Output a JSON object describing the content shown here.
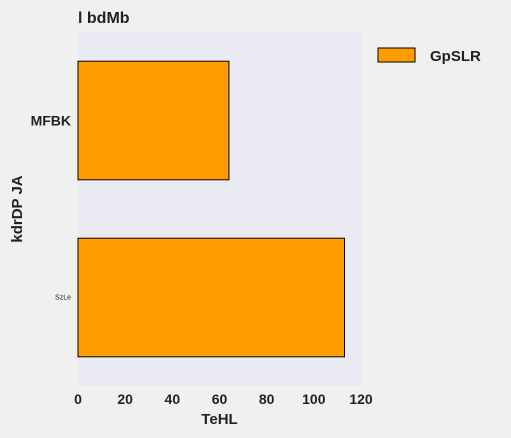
{
  "chart_data": {
    "type": "bar",
    "orientation": "horizontal",
    "title": "l bdMb",
    "xlabel": "TeHL",
    "ylabel": "kdrDP JA",
    "categories": [
      "MFBK",
      "SzLe"
    ],
    "series": [
      {
        "name": "GpSLR",
        "values": [
          64,
          113
        ],
        "color": "#ff9d00"
      }
    ],
    "xlim": [
      0,
      120
    ],
    "xticks": [
      0,
      20,
      40,
      60,
      80,
      100,
      120
    ],
    "grid": false,
    "legend_position": "outside-top-right",
    "plot_background": "#eaeaf2",
    "bar_edge_color": "#000000"
  }
}
